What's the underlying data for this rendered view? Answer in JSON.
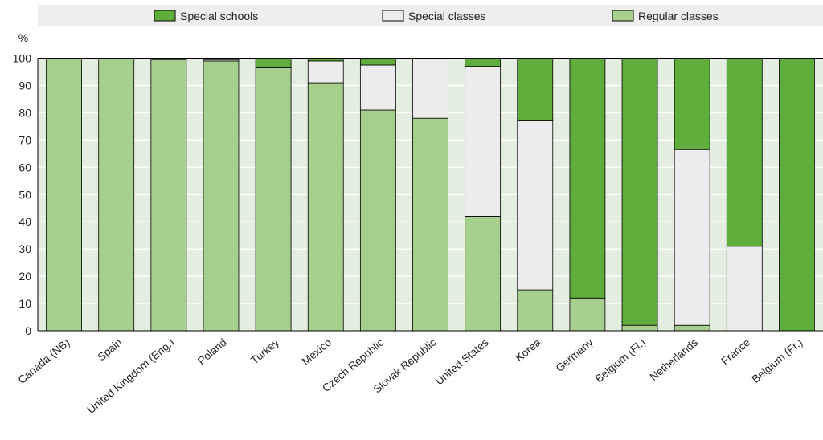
{
  "chart_data": {
    "type": "bar",
    "stacked": true,
    "ylabel": "%",
    "ylim": [
      0,
      100
    ],
    "yticks": [
      0,
      10,
      20,
      30,
      40,
      50,
      60,
      70,
      80,
      90,
      100
    ],
    "grid": true,
    "legend_position": "top",
    "categories": [
      "Canada (NB)",
      "Spain",
      "United Kingdom (Eng.)",
      "Poland",
      "Turkey",
      "Mexico",
      "Czech Republic",
      "Slovak Republic",
      "United States",
      "Korea",
      "Germany",
      "Belgium (Fl.)",
      "Netherlands",
      "France",
      "Belgium (Fr.)"
    ],
    "series": [
      {
        "name": "Regular classes",
        "color": "#a6ce8d",
        "values": [
          100,
          100,
          99.5,
          99,
          96.5,
          91,
          81,
          78,
          42,
          15,
          12,
          2,
          2,
          0,
          0
        ]
      },
      {
        "name": "Special classes",
        "color": "#ececec",
        "values": [
          0,
          0,
          0.3,
          0.5,
          0,
          8,
          16.5,
          22,
          55,
          62,
          0,
          0,
          64.5,
          31,
          0
        ]
      },
      {
        "name": "Special schools",
        "color": "#5fad3b",
        "values": [
          0,
          0,
          0.2,
          0.5,
          3.5,
          1,
          2.5,
          0,
          3,
          23,
          88,
          98,
          33.5,
          69,
          100
        ]
      }
    ],
    "legend_order": [
      "Special schools",
      "Special classes",
      "Regular classes"
    ]
  }
}
